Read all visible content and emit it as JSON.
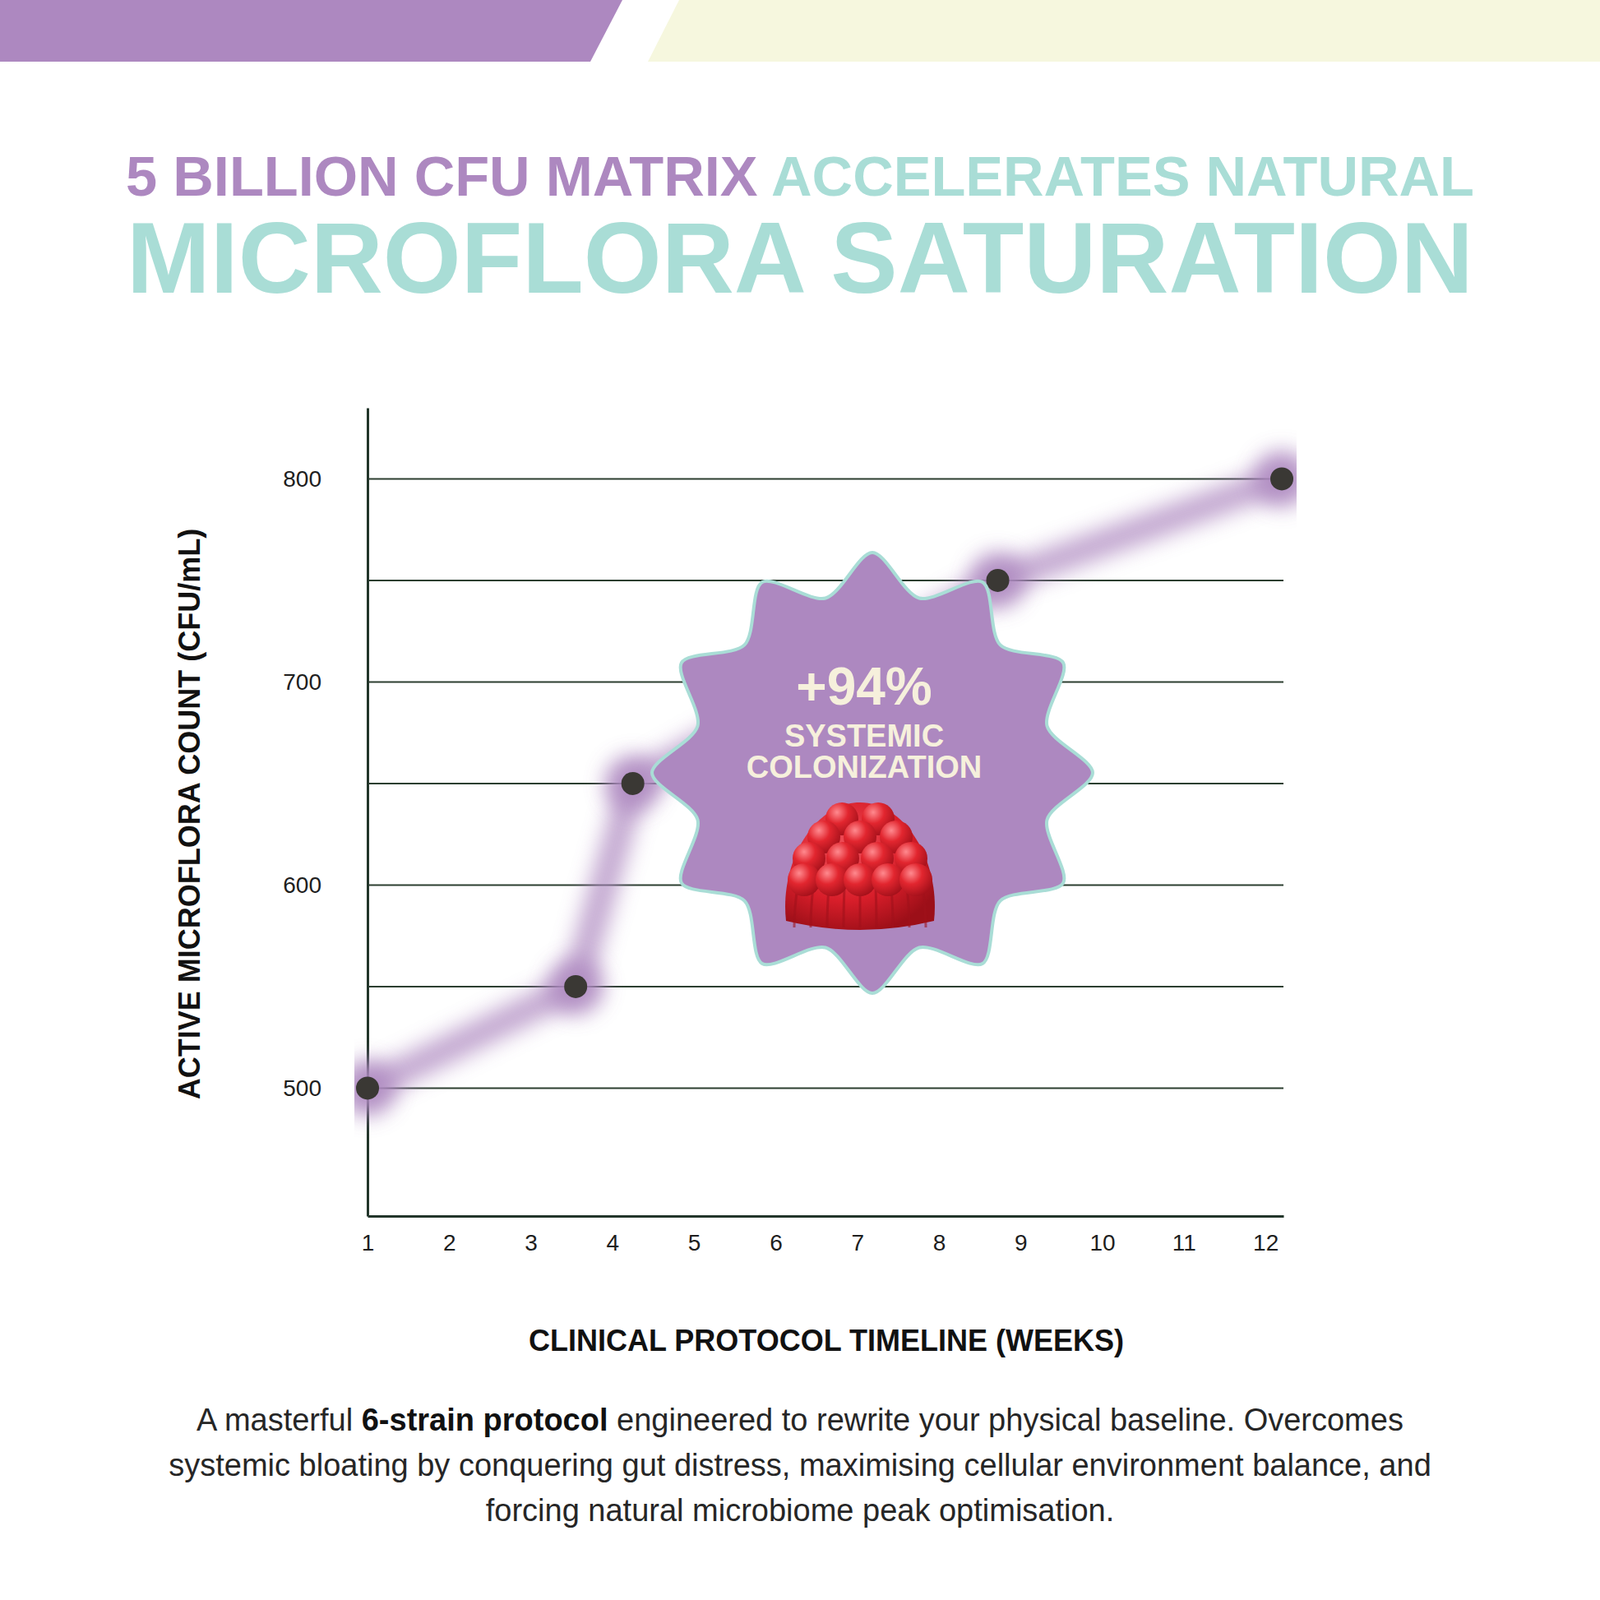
{
  "chart_data": {
    "type": "line",
    "title": [
      "5 BILLION CFU MATRIX",
      "ACCELERATES NATURAL",
      "MICROFLORA SATURATION"
    ],
    "x_label": "CLINICAL PROTOCOL TIMELINE (WEEKS)",
    "y_label": "ACTIVE MICROFLORA COUNT (CFU/mL)",
    "x": [
      1,
      3.55,
      4.25,
      8.72,
      12.2
    ],
    "values": [
      500,
      550,
      650,
      750,
      800
    ],
    "color": "#ad88c0",
    "marker": "circle",
    "xlim": [
      1,
      12.22
    ],
    "ylim": [
      437,
      835
    ],
    "xticks": [
      1,
      2,
      3,
      4,
      5,
      6,
      7,
      8,
      9,
      10,
      11,
      12
    ],
    "yticks": [
      500,
      {
        "value": 550,
        "label": null
      },
      600,
      {
        "value": 650,
        "label": null
      },
      700,
      {
        "value": 750,
        "label": null
      },
      800
    ],
    "grid": true,
    "annotations": [
      "+94%",
      "SYSTEMIC COLONIZATION"
    ],
    "caption": [
      "A masterful ",
      "6-strain protocol",
      " engineered to rewrite your physical baseline. Overcomes systemic bloating by conquering gut distress, maximising cellular environment balance, and forcing natural microbiome peak optimisation."
    ]
  }
}
